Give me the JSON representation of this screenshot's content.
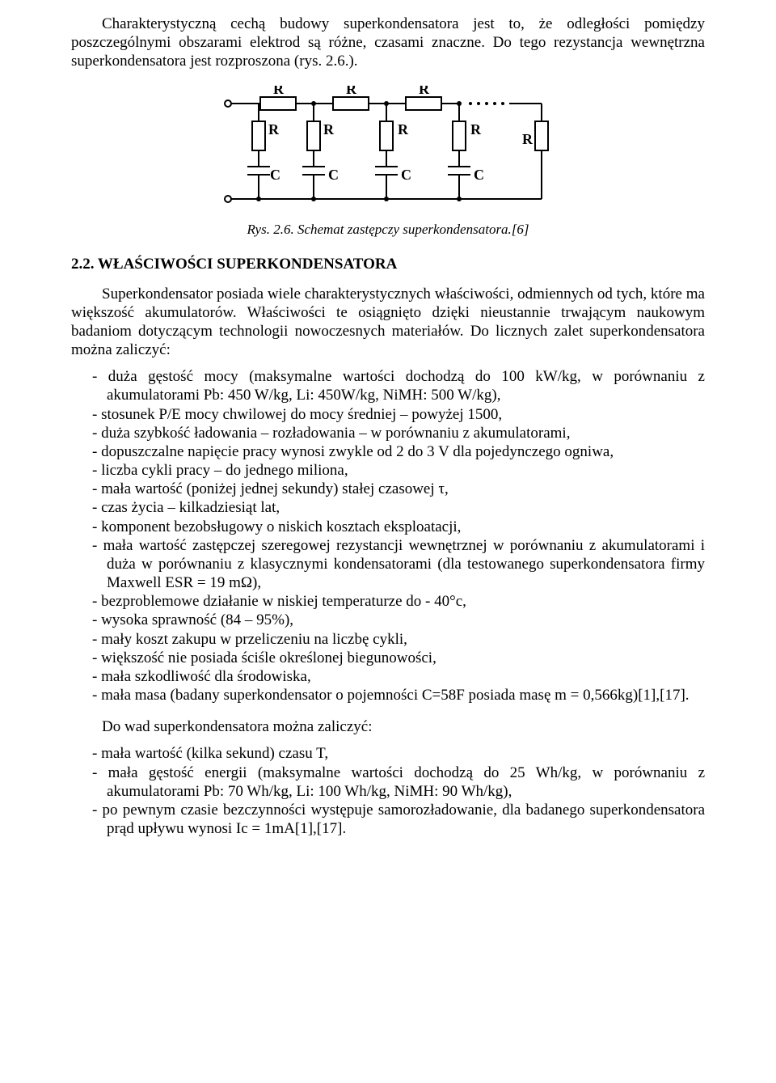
{
  "intro_paragraph": "Charakterystyczną cechą budowy superkondensatora jest to, że odległości pomiędzy poszczególnymi obszarami elektrod są różne, czasami znaczne. Do tego rezystancja wewnętrzna superkondensatora jest rozproszona (rys. 2.6.).",
  "figure": {
    "caption": "Rys. 2.6. Schemat zastępczy superkondensatora.[6]",
    "labels": {
      "R": "R",
      "C": "C"
    },
    "stroke": "#000000",
    "stroke_width": 2,
    "dot_radius": 4
  },
  "section_heading": "2.2. WŁAŚCIWOŚCI SUPERKONDENSATORA",
  "body_paragraph": "Superkondensator posiada wiele charakterystycznych właściwości, odmiennych od tych, które ma większość akumulatorów. Właściwości te osiągnięto dzięki nieustannie trwającym naukowym badaniom dotyczącym technologii nowoczesnych materiałów. Do licznych zalet superkondensatora można zaliczyć:",
  "advantages": [
    "duża gęstość mocy (maksymalne wartości dochodzą do 100 kW/kg, w porównaniu z akumulatorami Pb: 450 W/kg, Li: 450W/kg, NiMH: 500 W/kg),",
    "stosunek P/E mocy chwilowej do mocy średniej – powyżej 1500,",
    "duża szybkość ładowania – rozładowania – w porównaniu z akumulatorami,",
    "dopuszczalne napięcie pracy wynosi zwykle od 2 do 3 V dla pojedynczego ogniwa,",
    "liczba cykli pracy – do jednego miliona,",
    "mała wartość (poniżej jednej sekundy) stałej czasowej τ,",
    "czas życia – kilkadziesiąt lat,",
    "komponent bezobsługowy o niskich kosztach eksploatacji,",
    "mała wartość zastępczej szeregowej rezystancji wewnętrznej w porównaniu z akumulatorami i duża w porównaniu z klasycznymi kondensatorami (dla testowanego superkondensatora firmy Maxwell ESR = 19 mΩ),",
    "bezproblemowe działanie w niskiej temperaturze do - 40°c,",
    "wysoka sprawność (84 – 95%),",
    "mały koszt zakupu w przeliczeniu na liczbę cykli,",
    "większość nie posiada ściśle określonej biegunowości,",
    "mała szkodliwość dla środowiska,",
    "mała masa (badany superkondensator o pojemności C=58F posiada masę m = 0,566kg)[1],[17]."
  ],
  "disadv_intro": "Do wad superkondensatora można zaliczyć:",
  "disadvantages": [
    "mała wartość (kilka sekund) czasu T,",
    "mała gęstość energii (maksymalne wartości dochodzą do 25 Wh/kg, w porównaniu z akumulatorami Pb: 70 Wh/kg, Li: 100 Wh/kg, NiMH: 90 Wh/kg),",
    "po pewnym czasie bezczynności występuje samorozładowanie, dla badanego superkondensatora prąd upływu wynosi Ic = 1mA[1],[17]."
  ]
}
